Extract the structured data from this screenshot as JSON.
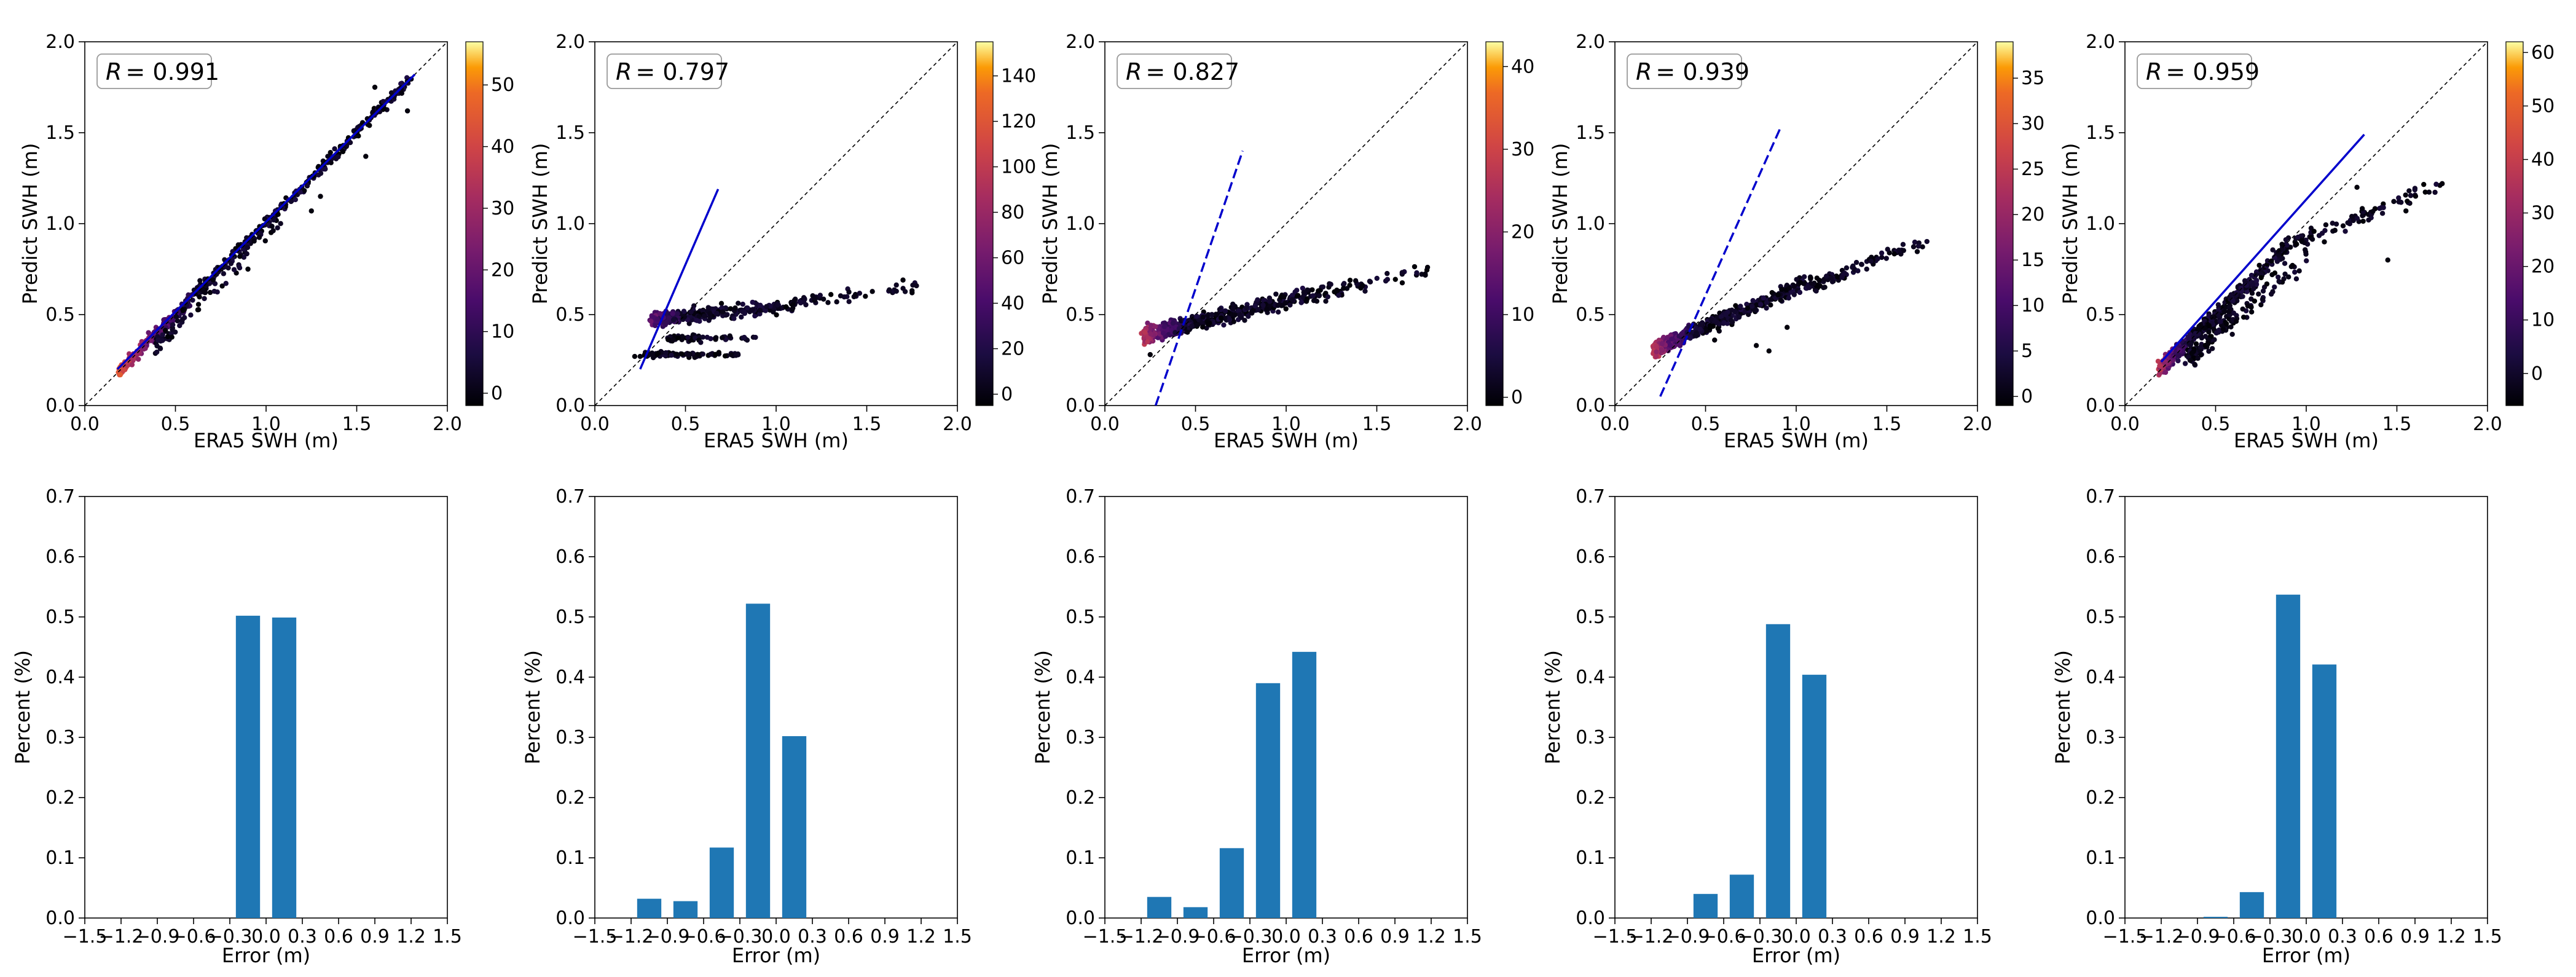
{
  "style": {
    "bar_color": "#1f77b4",
    "fit_color": "#0000cc",
    "identity_color": "#000000"
  },
  "chart_data": [
    {
      "type": "scatter",
      "panel": "scatter-1",
      "r_label": "R = 0.991",
      "r_symbol": "R",
      "r_value": "= 0.991",
      "xlabel": "ERA5 SWH (m)",
      "ylabel": "Predict SWH (m)",
      "xlim": [
        0,
        2
      ],
      "ylim": [
        0,
        2
      ],
      "xticks": [
        "0.0",
        "0.5",
        "1.0",
        "1.5",
        "2.0"
      ],
      "yticks": [
        "0.0",
        "0.5",
        "1.0",
        "1.5",
        "2.0"
      ],
      "colorbar": {
        "ticks": [
          0,
          10,
          20,
          30,
          40,
          50
        ],
        "min": -2,
        "max": 57
      },
      "fit_line": {
        "x": [
          0.18,
          1.82
        ],
        "y": [
          0.2,
          1.82
        ],
        "dashed": false
      },
      "point_groups": [
        {
          "type": "line",
          "x0": 0.2,
          "x1": 1.8,
          "slope": 1.0,
          "intercept": 0.0,
          "spread": 0.035,
          "n": 500,
          "hot": 0.7
        },
        {
          "type": "line",
          "x0": 0.4,
          "x1": 1.1,
          "slope": 1.0,
          "intercept": -0.06,
          "spread": 0.06,
          "n": 70,
          "hot": 0.0
        }
      ],
      "outliers": [
        [
          1.55,
          1.37
        ],
        [
          1.3,
          1.15
        ],
        [
          1.25,
          1.07
        ],
        [
          0.9,
          0.75
        ],
        [
          1.6,
          1.75
        ],
        [
          1.78,
          1.62
        ]
      ]
    },
    {
      "type": "scatter",
      "panel": "scatter-2",
      "r_label": "R = 0.797",
      "r_symbol": "R",
      "r_value": "= 0.797",
      "xlabel": "ERA5 SWH (m)",
      "ylabel": "Predict SWH (m)",
      "xlim": [
        0,
        2
      ],
      "ylim": [
        0,
        2
      ],
      "xticks": [
        "0.0",
        "0.5",
        "1.0",
        "1.5",
        "2.0"
      ],
      "yticks": [
        "0.0",
        "0.5",
        "1.0",
        "1.5",
        "2.0"
      ],
      "colorbar": {
        "ticks": [
          0,
          20,
          40,
          60,
          80,
          100,
          120,
          140
        ],
        "min": -5,
        "max": 155
      },
      "fit_line": {
        "x": [
          0.25,
          0.68
        ],
        "y": [
          0.2,
          1.19
        ],
        "dashed": false
      },
      "point_groups": [
        {
          "type": "line",
          "x0": 0.32,
          "x1": 1.1,
          "slope": 0.1,
          "intercept": 0.44,
          "spread": 0.035,
          "n": 300,
          "hot": 0.3
        },
        {
          "type": "line",
          "x0": 0.28,
          "x1": 0.8,
          "slope": 0.0,
          "intercept": 0.28,
          "spread": 0.015,
          "n": 90,
          "hot": 0.0
        },
        {
          "type": "line",
          "x0": 0.4,
          "x1": 0.9,
          "slope": 0.0,
          "intercept": 0.37,
          "spread": 0.02,
          "n": 60,
          "hot": 0.0
        },
        {
          "type": "line",
          "x0": 1.1,
          "x1": 1.8,
          "slope": 0.12,
          "intercept": 0.44,
          "spread": 0.03,
          "n": 55,
          "hot": 0.0
        }
      ],
      "outliers": [
        [
          0.25,
          0.27
        ],
        [
          0.22,
          0.27
        ],
        [
          1.7,
          0.69
        ],
        [
          1.75,
          0.62
        ]
      ]
    },
    {
      "type": "scatter",
      "panel": "scatter-3",
      "r_label": "R = 0.827",
      "r_symbol": "R",
      "r_value": "= 0.827",
      "xlabel": "ERA5 SWH (m)",
      "ylabel": "Predict SWH (m)",
      "xlim": [
        0,
        2
      ],
      "ylim": [
        0,
        2
      ],
      "xticks": [
        "0.0",
        "0.5",
        "1.0",
        "1.5",
        "2.0"
      ],
      "yticks": [
        "0.0",
        "0.5",
        "1.0",
        "1.5",
        "2.0"
      ],
      "colorbar": {
        "ticks": [
          0,
          10,
          20,
          30,
          40
        ],
        "min": -1,
        "max": 43
      },
      "fit_line": {
        "x": [
          0.28,
          0.76
        ],
        "y": [
          0.0,
          1.4
        ],
        "dashed": true
      },
      "point_groups": [
        {
          "type": "line",
          "x0": 0.22,
          "x1": 1.1,
          "slope": 0.25,
          "intercept": 0.33,
          "spread": 0.045,
          "n": 450,
          "hot": 0.55
        },
        {
          "type": "line",
          "x0": 1.1,
          "x1": 1.78,
          "slope": 0.2,
          "intercept": 0.38,
          "spread": 0.04,
          "n": 70,
          "hot": 0.0
        }
      ],
      "outliers": [
        [
          0.25,
          0.28
        ],
        [
          1.78,
          0.76
        ]
      ]
    },
    {
      "type": "scatter",
      "panel": "scatter-4",
      "r_label": "R = 0.939",
      "r_symbol": "R",
      "r_value": "= 0.939",
      "xlabel": "ERA5 SWH (m)",
      "ylabel": "Predict SWH (m)",
      "xlim": [
        0,
        2
      ],
      "ylim": [
        0,
        2
      ],
      "xticks": [
        "0.0",
        "0.5",
        "1.0",
        "1.5",
        "2.0"
      ],
      "yticks": [
        "0.0",
        "0.5",
        "1.0",
        "1.5",
        "2.0"
      ],
      "colorbar": {
        "ticks": [
          0,
          5,
          10,
          15,
          20,
          25,
          30,
          35
        ],
        "min": -1,
        "max": 39
      },
      "fit_line": {
        "x": [
          0.25,
          0.91
        ],
        "y": [
          0.05,
          1.52
        ],
        "dashed": true
      },
      "point_groups": [
        {
          "type": "line",
          "x0": 0.22,
          "x1": 1.1,
          "slope": 0.43,
          "intercept": 0.22,
          "spread": 0.04,
          "n": 480,
          "hot": 0.55
        },
        {
          "type": "line",
          "x0": 1.1,
          "x1": 1.72,
          "slope": 0.4,
          "intercept": 0.22,
          "spread": 0.035,
          "n": 85,
          "hot": 0.0
        }
      ],
      "outliers": [
        [
          0.55,
          0.36
        ],
        [
          0.78,
          0.33
        ],
        [
          0.85,
          0.3
        ],
        [
          0.95,
          0.43
        ]
      ]
    },
    {
      "type": "scatter",
      "panel": "scatter-5",
      "r_label": "R = 0.959",
      "r_symbol": "R",
      "r_value": "= 0.959",
      "xlabel": "ERA5 SWH (m)",
      "ylabel": "Predict SWH (m)",
      "xlim": [
        0,
        2
      ],
      "ylim": [
        0,
        2
      ],
      "xticks": [
        "0.0",
        "0.5",
        "1.0",
        "1.5",
        "2.0"
      ],
      "yticks": [
        "0.0",
        "0.5",
        "1.0",
        "1.5",
        "2.0"
      ],
      "colorbar": {
        "ticks": [
          0,
          10,
          20,
          30,
          40,
          50,
          60
        ],
        "min": -6,
        "max": 62
      },
      "fit_line": {
        "x": [
          0.2,
          1.32
        ],
        "y": [
          0.24,
          1.49
        ],
        "dashed": false
      },
      "point_groups": [
        {
          "type": "line",
          "x0": 0.2,
          "x1": 0.85,
          "slope": 0.95,
          "intercept": 0.02,
          "spread": 0.045,
          "n": 380,
          "hot": 0.55
        },
        {
          "type": "line",
          "x0": 0.35,
          "x1": 1.0,
          "slope": 0.85,
          "intercept": -0.03,
          "spread": 0.07,
          "n": 140,
          "hot": 0.0
        },
        {
          "type": "line",
          "x0": 0.85,
          "x1": 1.75,
          "slope": 0.4,
          "intercept": 0.52,
          "spread": 0.04,
          "n": 110,
          "hot": 0.0
        }
      ],
      "outliers": [
        [
          1.28,
          1.2
        ],
        [
          1.45,
          0.8
        ],
        [
          1.55,
          1.07
        ],
        [
          1.1,
          0.9
        ],
        [
          1.75,
          1.22
        ]
      ]
    },
    {
      "type": "bar",
      "panel": "hist-1",
      "xlabel": "Error (m)",
      "ylabel": "Percent (%)",
      "xlim": [
        -1.5,
        1.5
      ],
      "ylim": [
        0,
        0.7
      ],
      "xticks": [
        "−1.5",
        "−1.2",
        "−0.9",
        "−0.6",
        "−0.3",
        "0.0",
        "0.3",
        "0.6",
        "0.9",
        "1.2",
        "1.5"
      ],
      "yticks": [
        "0.0",
        "0.1",
        "0.2",
        "0.3",
        "0.4",
        "0.5",
        "0.6",
        "0.7"
      ],
      "bin_centers": [
        -0.15,
        0.15
      ],
      "bar_width": 0.2,
      "values": [
        0.502,
        0.499
      ]
    },
    {
      "type": "bar",
      "panel": "hist-2",
      "xlabel": "Error (m)",
      "ylabel": "Percent (%)",
      "xlim": [
        -1.5,
        1.5
      ],
      "ylim": [
        0,
        0.7
      ],
      "xticks": [
        "−1.5",
        "−1.2",
        "−0.9",
        "−0.6",
        "−0.3",
        "0.0",
        "0.3",
        "0.6",
        "0.9",
        "1.2",
        "1.5"
      ],
      "yticks": [
        "0.0",
        "0.1",
        "0.2",
        "0.3",
        "0.4",
        "0.5",
        "0.6",
        "0.7"
      ],
      "bin_centers": [
        -1.05,
        -0.75,
        -0.45,
        -0.15,
        0.15
      ],
      "bar_width": 0.2,
      "values": [
        0.032,
        0.028,
        0.117,
        0.522,
        0.302
      ]
    },
    {
      "type": "bar",
      "panel": "hist-3",
      "xlabel": "Error (m)",
      "ylabel": "Percent (%)",
      "xlim": [
        -1.5,
        1.5
      ],
      "ylim": [
        0,
        0.7
      ],
      "xticks": [
        "−1.5",
        "−1.2",
        "−0.9",
        "−0.6",
        "−0.3",
        "0.0",
        "0.3",
        "0.6",
        "0.9",
        "1.2",
        "1.5"
      ],
      "yticks": [
        "0.0",
        "0.1",
        "0.2",
        "0.3",
        "0.4",
        "0.5",
        "0.6",
        "0.7"
      ],
      "bin_centers": [
        -1.05,
        -0.75,
        -0.45,
        -0.15,
        0.15
      ],
      "bar_width": 0.2,
      "values": [
        0.035,
        0.018,
        0.116,
        0.39,
        0.442
      ]
    },
    {
      "type": "bar",
      "panel": "hist-4",
      "xlabel": "Error (m)",
      "ylabel": "Percent (%)",
      "xlim": [
        -1.5,
        1.5
      ],
      "ylim": [
        0,
        0.7
      ],
      "xticks": [
        "−1.5",
        "−1.2",
        "−0.9",
        "−0.6",
        "−0.3",
        "0.0",
        "0.3",
        "0.6",
        "0.9",
        "1.2",
        "1.5"
      ],
      "yticks": [
        "0.0",
        "0.1",
        "0.2",
        "0.3",
        "0.4",
        "0.5",
        "0.6",
        "0.7"
      ],
      "bin_centers": [
        -0.75,
        -0.45,
        -0.15,
        0.15
      ],
      "bar_width": 0.2,
      "values": [
        0.04,
        0.072,
        0.488,
        0.404
      ]
    },
    {
      "type": "bar",
      "panel": "hist-5",
      "xlabel": "Error (m)",
      "ylabel": "Percent (%)",
      "xlim": [
        -1.5,
        1.5
      ],
      "ylim": [
        0,
        0.7
      ],
      "xticks": [
        "−1.5",
        "−1.2",
        "−0.9",
        "−0.6",
        "−0.3",
        "0.0",
        "0.3",
        "0.6",
        "0.9",
        "1.2",
        "1.5"
      ],
      "yticks": [
        "0.0",
        "0.1",
        "0.2",
        "0.3",
        "0.4",
        "0.5",
        "0.6",
        "0.7"
      ],
      "bin_centers": [
        -0.75,
        -0.45,
        -0.15,
        0.15
      ],
      "bar_width": 0.2,
      "values": [
        0.002,
        0.043,
        0.537,
        0.421
      ]
    }
  ]
}
